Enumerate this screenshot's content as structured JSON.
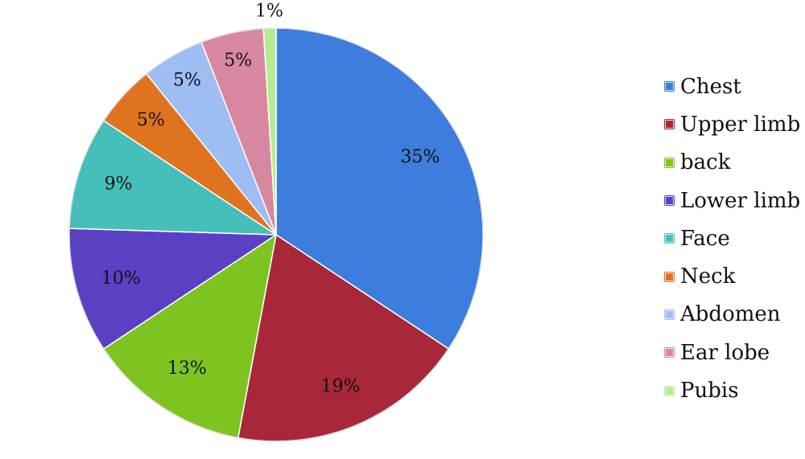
{
  "chart_data": {
    "type": "pie",
    "title": "",
    "legend_position": "right",
    "slices": [
      {
        "name": "Chest",
        "value": 35,
        "label": "35%",
        "color": "#3C7DDD"
      },
      {
        "name": "Upper limb",
        "value": 19,
        "label": "19%",
        "color": "#A8283A"
      },
      {
        "name": "back",
        "value": 13,
        "label": "13%",
        "color": "#7DC421"
      },
      {
        "name": "Lower limb",
        "value": 10,
        "label": "10%",
        "color": "#5B40C4"
      },
      {
        "name": "Face",
        "value": 9,
        "label": "9%",
        "color": "#46BFBB"
      },
      {
        "name": "Neck",
        "value": 5,
        "label": "5%",
        "color": "#E0731F"
      },
      {
        "name": "Abdomen",
        "value": 5,
        "label": "5%",
        "color": "#9DBDF3"
      },
      {
        "name": "Ear lobe",
        "value": 5,
        "label": "5%",
        "color": "#D887A1"
      },
      {
        "name": "Pubis",
        "value": 1,
        "label": "1%",
        "color": "#B6EC90"
      }
    ]
  }
}
